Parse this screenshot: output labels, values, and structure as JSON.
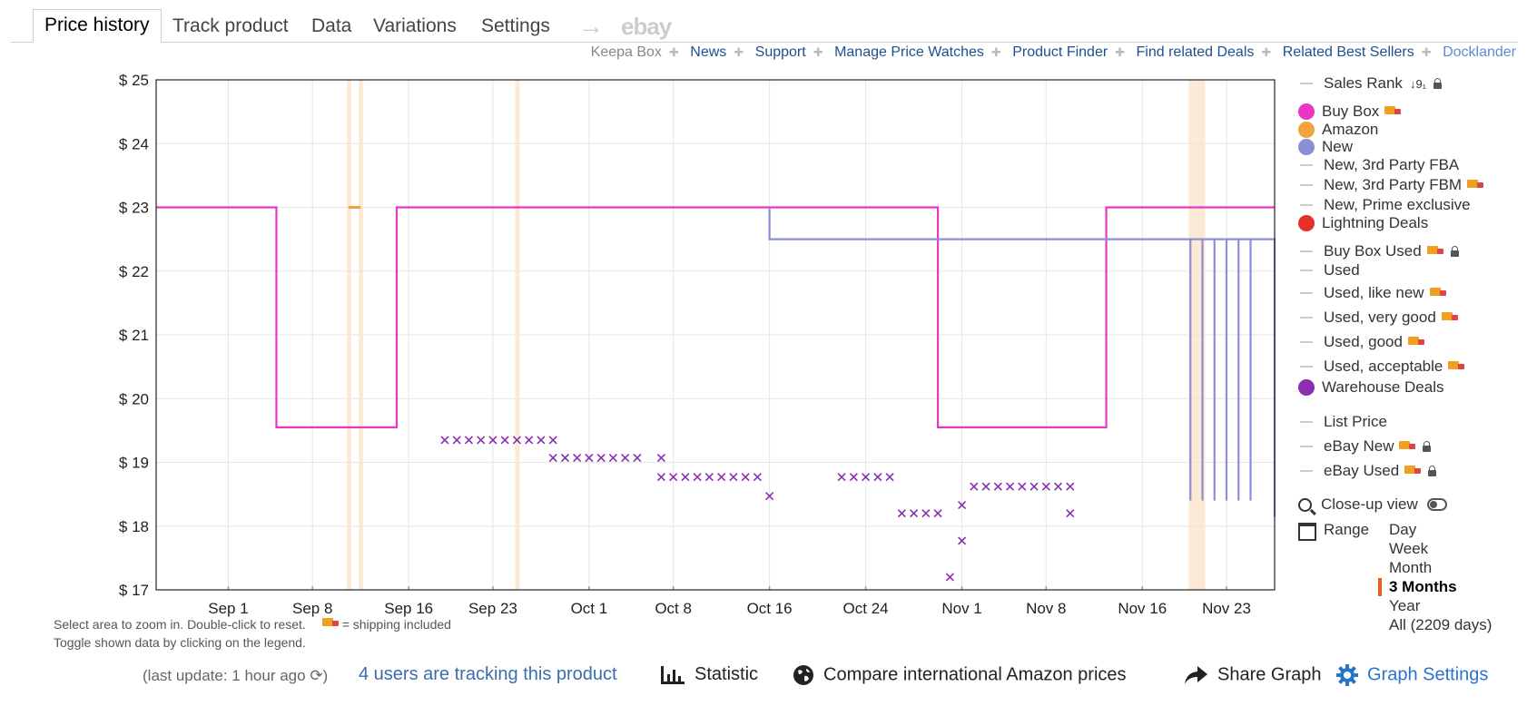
{
  "tabs": {
    "price_history": "Price history",
    "track_product": "Track product",
    "data": "Data",
    "variations": "Variations",
    "settings": "Settings",
    "arrow": "→",
    "ebay": "ebay"
  },
  "links": {
    "keepa_box": "Keepa Box",
    "news": "News",
    "support": "Support",
    "manage": "Manage Price Watches",
    "finder": "Product Finder",
    "deals": "Find related Deals",
    "best": "Related Best Sellers",
    "dock": "Docklander"
  },
  "legend": {
    "sales_rank": "Sales Rank",
    "sales_rank_sort": "↓9₁",
    "buy_box": "Buy Box",
    "amazon": "Amazon",
    "new": "New",
    "new_fba": "New, 3rd Party FBA",
    "new_fbm": "New, 3rd Party FBM",
    "new_prime": "New, Prime exclusive",
    "lightning": "Lightning Deals",
    "bb_used": "Buy Box Used",
    "used": "Used",
    "used_like_new": "Used, like new",
    "used_very_good": "Used, very good",
    "used_good": "Used, good",
    "used_acceptable": "Used, acceptable",
    "warehouse": "Warehouse Deals",
    "list_price": "List Price",
    "ebay_new": "eBay New",
    "ebay_used": "eBay Used",
    "colors": {
      "buy_box": "#ea36c3",
      "amazon": "#f4a23a",
      "new": "#8a8fd6",
      "lightning": "#e8302a",
      "warehouse": "#8a2fb0"
    }
  },
  "close_up": "Close-up view",
  "range": {
    "label": "Range",
    "options": [
      "Day",
      "Week",
      "Month",
      "3 Months",
      "Year",
      "All (2209 days)"
    ],
    "selected": "3 Months"
  },
  "notes": {
    "line1": "Select area to zoom in. Double-click to reset.",
    "shipping": "= shipping included",
    "line2": "Toggle shown data by clicking on the legend."
  },
  "footer": {
    "last_update": "(last update: 1 hour ago",
    "refresh_icon": "⟳)",
    "tracking": "4 users are tracking this product",
    "statistic": "Statistic",
    "compare": "Compare international Amazon prices",
    "share": "Share Graph",
    "graph_settings": "Graph Settings"
  },
  "chart_data": {
    "type": "line",
    "x_unit": "date",
    "x_range": [
      "2023-08-26",
      "2023-11-27"
    ],
    "y_range": [
      17,
      25
    ],
    "y_ticks": [
      17,
      18,
      19,
      20,
      21,
      22,
      23,
      24,
      25
    ],
    "y_tick_labels": [
      "$ 17",
      "$ 18",
      "$ 19",
      "$ 20",
      "$ 21",
      "$ 22",
      "$ 23",
      "$ 24",
      "$ 25"
    ],
    "x_ticks": [
      "2023-09-01",
      "2023-09-08",
      "2023-09-16",
      "2023-09-23",
      "2023-10-01",
      "2023-10-08",
      "2023-10-16",
      "2023-10-24",
      "2023-11-01",
      "2023-11-08",
      "2023-11-16",
      "2023-11-23"
    ],
    "x_tick_labels": [
      "Sep 1",
      "Sep 8",
      "Sep 16",
      "Sep 23",
      "Oct 1",
      "Oct 8",
      "Oct 16",
      "Oct 24",
      "Nov 1",
      "Nov 8",
      "Nov 16",
      "Nov 23"
    ],
    "grid": true,
    "series": [
      {
        "name": "Buy Box",
        "color": "#ea36c3",
        "step": true,
        "points": [
          [
            "2023-08-26",
            23
          ],
          [
            "2023-09-05",
            19.55
          ],
          [
            "2023-09-15",
            23
          ],
          [
            "2023-10-30",
            19.55
          ],
          [
            "2023-11-13",
            23
          ],
          [
            "2023-11-27",
            23
          ]
        ]
      },
      {
        "name": "Amazon",
        "color": "#f4a23a",
        "step": true,
        "points": [
          [
            "2023-09-11",
            23
          ],
          [
            "2023-09-12",
            23
          ]
        ]
      },
      {
        "name": "New",
        "color": "#8a8fd6",
        "step": true,
        "points": [
          [
            "2023-10-16",
            23
          ],
          [
            "2023-10-16",
            22.5
          ],
          [
            "2023-10-30",
            22.5
          ],
          [
            "2023-11-13",
            22.5
          ],
          [
            "2023-11-20",
            22.5
          ],
          [
            "2023-11-20",
            18.4
          ],
          [
            "2023-11-20",
            22.5
          ],
          [
            "2023-11-21",
            18.4
          ],
          [
            "2023-11-21",
            22.5
          ],
          [
            "2023-11-22",
            18.4
          ],
          [
            "2023-11-22",
            22.5
          ],
          [
            "2023-11-23",
            18.4
          ],
          [
            "2023-11-23",
            22.5
          ],
          [
            "2023-11-24",
            18.4
          ],
          [
            "2023-11-24",
            22.5
          ],
          [
            "2023-11-25",
            18.4
          ],
          [
            "2023-11-25",
            22.5
          ],
          [
            "2023-11-26",
            22.5
          ],
          [
            "2023-11-27",
            18.15
          ]
        ]
      },
      {
        "name": "Warehouse Deals",
        "color": "#8a2fb0",
        "marker": "x",
        "points": [
          [
            "2023-09-19",
            19.35
          ],
          [
            "2023-09-20",
            19.35
          ],
          [
            "2023-09-21",
            19.35
          ],
          [
            "2023-09-22",
            19.35
          ],
          [
            "2023-09-23",
            19.35
          ],
          [
            "2023-09-24",
            19.35
          ],
          [
            "2023-09-25",
            19.35
          ],
          [
            "2023-09-26",
            19.35
          ],
          [
            "2023-09-27",
            19.35
          ],
          [
            "2023-09-28",
            19.35
          ],
          [
            "2023-09-28",
            19.07
          ],
          [
            "2023-09-29",
            19.07
          ],
          [
            "2023-09-30",
            19.07
          ],
          [
            "2023-10-01",
            19.07
          ],
          [
            "2023-10-02",
            19.07
          ],
          [
            "2023-10-03",
            19.07
          ],
          [
            "2023-10-04",
            19.07
          ],
          [
            "2023-10-05",
            19.07
          ],
          [
            "2023-10-07",
            19.07
          ],
          [
            "2023-10-07",
            18.77
          ],
          [
            "2023-10-08",
            18.77
          ],
          [
            "2023-10-09",
            18.77
          ],
          [
            "2023-10-10",
            18.77
          ],
          [
            "2023-10-11",
            18.77
          ],
          [
            "2023-10-12",
            18.77
          ],
          [
            "2023-10-13",
            18.77
          ],
          [
            "2023-10-14",
            18.77
          ],
          [
            "2023-10-15",
            18.77
          ],
          [
            "2023-10-16",
            18.47
          ],
          [
            "2023-10-22",
            18.77
          ],
          [
            "2023-10-23",
            18.77
          ],
          [
            "2023-10-24",
            18.77
          ],
          [
            "2023-10-25",
            18.77
          ],
          [
            "2023-10-26",
            18.77
          ],
          [
            "2023-10-27",
            18.2
          ],
          [
            "2023-10-28",
            18.2
          ],
          [
            "2023-10-29",
            18.2
          ],
          [
            "2023-10-30",
            18.2
          ],
          [
            "2023-10-31",
            17.2
          ],
          [
            "2023-11-01",
            17.77
          ],
          [
            "2023-11-01",
            18.33
          ],
          [
            "2023-11-02",
            18.62
          ],
          [
            "2023-11-03",
            18.62
          ],
          [
            "2023-11-04",
            18.62
          ],
          [
            "2023-11-05",
            18.62
          ],
          [
            "2023-11-06",
            18.62
          ],
          [
            "2023-11-07",
            18.62
          ],
          [
            "2023-11-08",
            18.62
          ],
          [
            "2023-11-09",
            18.62
          ],
          [
            "2023-11-10",
            18.62
          ],
          [
            "2023-11-10",
            18.2
          ]
        ]
      }
    ],
    "highlights": [
      {
        "from": "2023-09-11",
        "to": "2023-09-11"
      },
      {
        "from": "2023-09-12",
        "to": "2023-09-12"
      },
      {
        "from": "2023-09-25",
        "to": "2023-09-25"
      },
      {
        "from": "2023-11-20",
        "to": "2023-11-21"
      }
    ]
  }
}
